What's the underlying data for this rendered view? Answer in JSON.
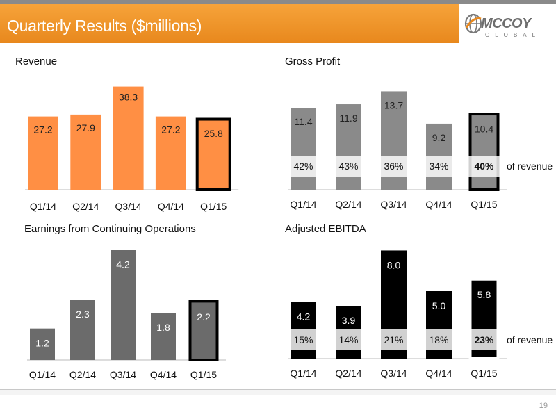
{
  "page": {
    "title": "Quarterly Results ($millions)",
    "page_number": "19"
  },
  "logo": {
    "main": "MCCOY",
    "sub": "GLOBAL"
  },
  "colors": {
    "title_bar": "#ee9228",
    "revenue_bar": "#ff8f44",
    "gross_profit_bar": "#8a8a8a",
    "earnings_bar": "#6b6b6b",
    "ebitda_bar": "#000000",
    "highlight_border": "#000000",
    "ebitda_highlight_border": "#ffffff"
  },
  "chart_data": [
    {
      "type": "bar",
      "title": "Revenue",
      "categories": [
        "Q1/14",
        "Q2/14",
        "Q3/14",
        "Q4/14",
        "Q1/15"
      ],
      "series": [
        {
          "values": [
            27.2,
            27.9,
            38.3,
            27.2,
            25.8
          ]
        }
      ],
      "data_labels": [
        "27.2",
        "27.9",
        "38.3",
        "27.2",
        "25.8"
      ],
      "highlight": "Q1/15",
      "ylim": [
        0,
        40
      ]
    },
    {
      "type": "bar",
      "title": "Gross Profit",
      "categories": [
        "Q1/14",
        "Q2/14",
        "Q3/14",
        "Q4/14",
        "Q1/15"
      ],
      "series": [
        {
          "values": [
            11.4,
            11.9,
            13.7,
            9.2,
            10.4
          ]
        }
      ],
      "data_labels": [
        "11.4",
        "11.9",
        "13.7",
        "9.2",
        "10.4"
      ],
      "margins": [
        "42%",
        "43%",
        "36%",
        "34%",
        "40%"
      ],
      "margin_suffix": "of revenue",
      "highlight": "Q1/15",
      "ylim": [
        0,
        15
      ]
    },
    {
      "type": "bar",
      "title": "Earnings from Continuing Operations",
      "categories": [
        "Q1/14",
        "Q2/14",
        "Q3/14",
        "Q4/14",
        "Q1/15"
      ],
      "series": [
        {
          "values": [
            1.2,
            2.3,
            4.2,
            1.8,
            2.2
          ]
        }
      ],
      "data_labels": [
        "1.2",
        "2.3",
        "4.2",
        "1.8",
        "2.2"
      ],
      "highlight": "Q1/15",
      "ylim": [
        0,
        4.5
      ]
    },
    {
      "type": "bar",
      "title": "Adjusted EBITDA",
      "categories": [
        "Q1/14",
        "Q2/14",
        "Q3/14",
        "Q4/14",
        "Q1/15"
      ],
      "series": [
        {
          "values": [
            4.2,
            3.9,
            8.0,
            5.0,
            5.8
          ]
        }
      ],
      "data_labels": [
        "4.2",
        "3.9",
        "8.0",
        "5.0",
        "5.8"
      ],
      "margins": [
        "15%",
        "14%",
        "21%",
        "18%",
        "23%"
      ],
      "margin_suffix": "of revenue",
      "highlight": "Q1/15",
      "ylim": [
        0,
        9
      ]
    }
  ]
}
